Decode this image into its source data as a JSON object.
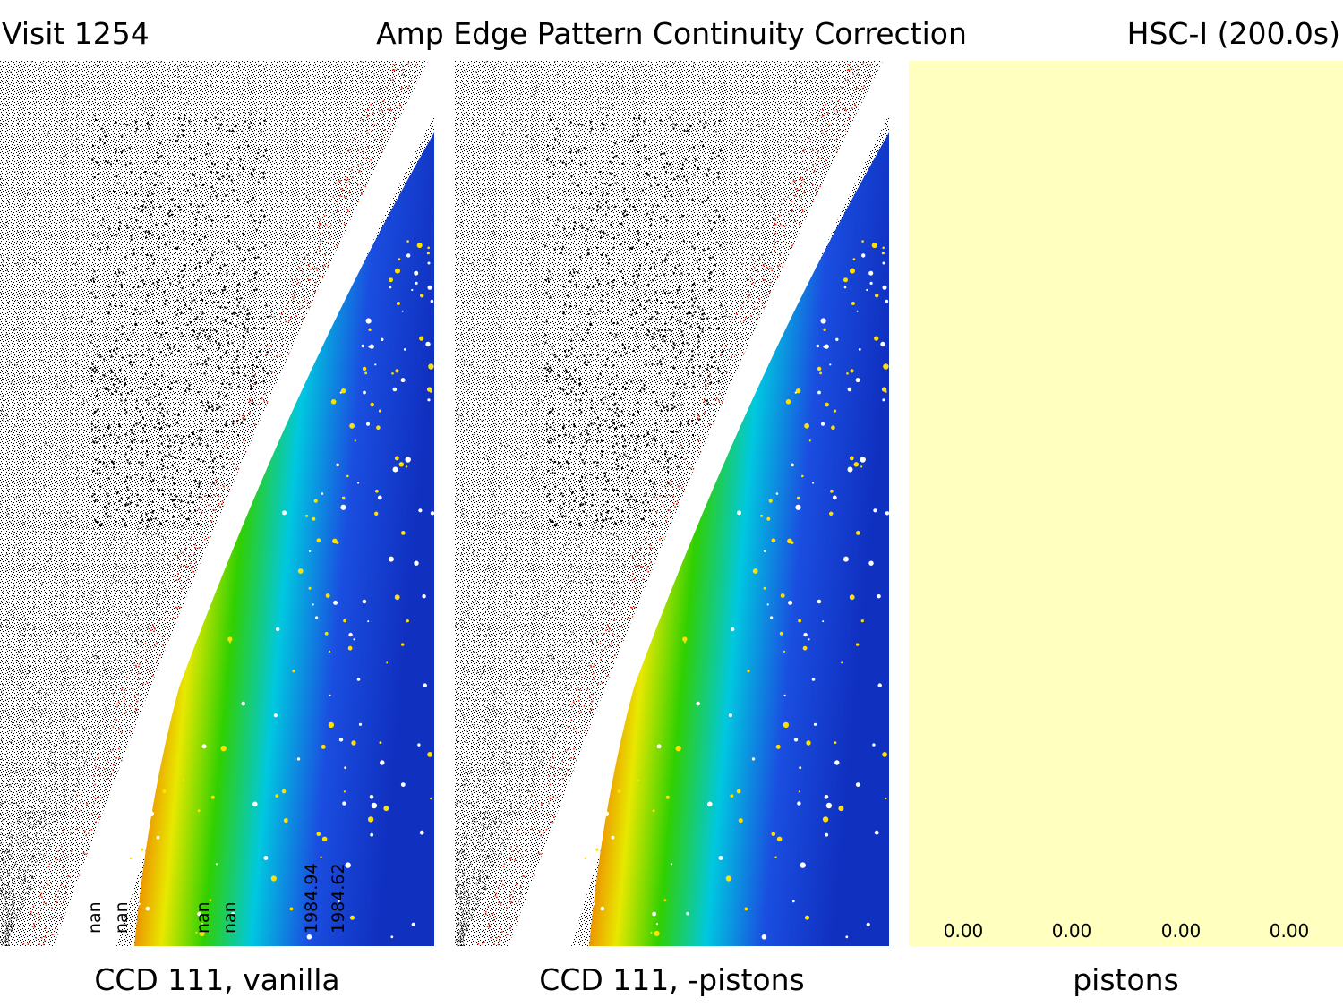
{
  "header": {
    "visit": "Visit 1254",
    "title": "Amp Edge Pattern Continuity Correction",
    "filter": "HSC-I (200.0s)"
  },
  "panels": [
    {
      "caption": "CCD 111, vanilla",
      "amp_labels": [
        "nan",
        "nan",
        "nan",
        "nan",
        "1984.94",
        "1984.62"
      ]
    },
    {
      "caption": "CCD 111, -pistons"
    },
    {
      "caption": "pistons",
      "values": [
        "0.00",
        "0.00",
        "0.00",
        "0.00"
      ]
    }
  ],
  "colors": {
    "background_noise": "#000000",
    "gap": "#ffffff",
    "red_band": "#f02000",
    "yellow_band": "#e8e800",
    "green_band": "#30d000",
    "cyan_band": "#00c8e0",
    "blue_field": "#1a4ee0",
    "piston_fill": "#ffffc0"
  }
}
